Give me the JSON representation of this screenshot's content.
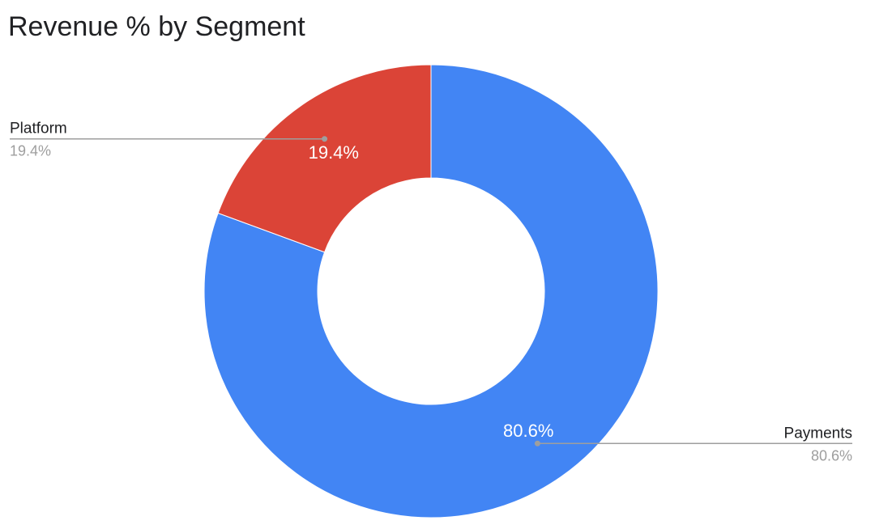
{
  "chart_data": {
    "type": "pie",
    "title": "Revenue % by Segment",
    "donut": true,
    "slices": [
      {
        "label": "Payments",
        "value": 80.6,
        "percent_label": "80.6%",
        "color": "#4285f4"
      },
      {
        "label": "Platform",
        "value": 19.4,
        "percent_label": "19.4%",
        "color": "#db4437"
      }
    ],
    "legend": "side-labels"
  }
}
